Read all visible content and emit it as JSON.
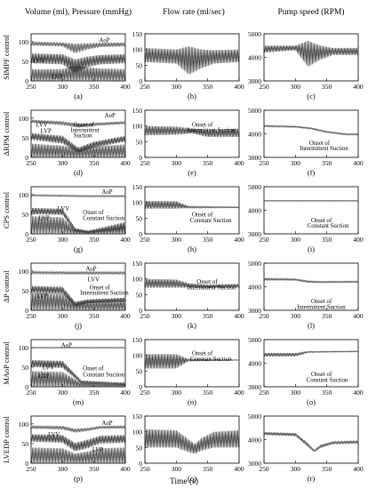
{
  "column_titles": [
    "Volume (ml), Pressure (mmHg)",
    "Flow rate (ml/sec)",
    "Pump speed (RPM)"
  ],
  "x_axis_label": "Time (s)",
  "x_ticks": [
    "250",
    "300",
    "350",
    "400"
  ],
  "rows": [
    {
      "row_label": "SIMPF control",
      "panels": [
        {
          "letter": "(a)",
          "yticks": [
            "0",
            "50",
            "100"
          ],
          "annotations": [
            "AoP",
            "LVV",
            "LVP"
          ]
        },
        {
          "letter": "(b)",
          "yticks": [
            "0",
            "50",
            "100",
            "150"
          ],
          "annotations": []
        },
        {
          "letter": "(c)",
          "yticks": [
            "3000",
            "4000",
            "5000"
          ],
          "annotations": []
        }
      ]
    },
    {
      "row_label": "ΔRPM control",
      "panels": [
        {
          "letter": "(d)",
          "yticks": [
            "0",
            "50",
            "100"
          ],
          "annotations": [
            "AoP",
            "LVV",
            "LVP",
            "Onset of",
            "Intermittent",
            "Suction"
          ]
        },
        {
          "letter": "(e)",
          "yticks": [
            "0",
            "50",
            "100",
            "150"
          ],
          "annotations": [
            "Onset of",
            "Intermittent Suction"
          ]
        },
        {
          "letter": "(f)",
          "yticks": [
            "3000",
            "4000",
            "5000"
          ],
          "annotations": [
            "Onset of",
            "Intermittent Suction"
          ]
        }
      ]
    },
    {
      "row_label": "CPS control",
      "panels": [
        {
          "letter": "(g)",
          "yticks": [
            "0",
            "50",
            "100"
          ],
          "annotations": [
            "AoP",
            "LVV",
            "LVP",
            "Onset of",
            "Constant Suction"
          ]
        },
        {
          "letter": "(h)",
          "yticks": [
            "0",
            "50",
            "100",
            "150"
          ],
          "annotations": [
            "Onset of",
            "Constant Suction"
          ]
        },
        {
          "letter": "(i)",
          "yticks": [
            "3000",
            "4000",
            "5000"
          ],
          "annotations": [
            "Onset of",
            "Constant Suction"
          ]
        }
      ]
    },
    {
      "row_label": "ΔP control",
      "panels": [
        {
          "letter": "(j)",
          "yticks": [
            "0",
            "50",
            "100"
          ],
          "annotations": [
            "AoP",
            "LVV",
            "LVP",
            "Onset of",
            "Intermittent Suction"
          ]
        },
        {
          "letter": "(k)",
          "yticks": [
            "0",
            "50",
            "100",
            "150"
          ],
          "annotations": [
            "Onset of",
            "Intermittent Suction"
          ]
        },
        {
          "letter": "(l)",
          "yticks": [
            "3000",
            "4000",
            "5000"
          ],
          "annotations": [
            "Onset of",
            "Intermittent Suction"
          ]
        }
      ]
    },
    {
      "row_label": "MAoP control",
      "panels": [
        {
          "letter": "(m)",
          "yticks": [
            "0",
            "50",
            "100"
          ],
          "annotations": [
            "AoP",
            "LVV",
            "LVP",
            "Onset of",
            "Constant Suction"
          ]
        },
        {
          "letter": "(n)",
          "yticks": [
            "0",
            "50",
            "100",
            "150"
          ],
          "annotations": [
            "Onset of",
            "Constant Suction"
          ]
        },
        {
          "letter": "(o)",
          "yticks": [
            "3000",
            "4000",
            "5000"
          ],
          "annotations": [
            "Onset of",
            "Constant Suction"
          ]
        }
      ]
    },
    {
      "row_label": "LVEDP control",
      "panels": [
        {
          "letter": "(p)",
          "yticks": [
            "0",
            "50",
            "100"
          ],
          "annotations": [
            "AoP",
            "LVV",
            "LVP"
          ]
        },
        {
          "letter": "(q)",
          "yticks": [
            "0",
            "50",
            "100",
            "150"
          ],
          "annotations": []
        },
        {
          "letter": "(r)",
          "yticks": [
            "3000",
            "4000",
            "5000"
          ],
          "annotations": []
        }
      ]
    }
  ],
  "chart_data": [
    {
      "type": "line",
      "panel": "(a)",
      "xlim": [
        250,
        400
      ],
      "ylim": [
        0,
        120
      ],
      "series": [
        {
          "name": "AoP",
          "x": [
            250,
            300,
            320,
            340,
            360,
            400
          ],
          "min": [
            90,
            88,
            70,
            80,
            86,
            88
          ],
          "max": [
            100,
            98,
            95,
            96,
            97,
            98
          ]
        },
        {
          "name": "LVV",
          "x": [
            250,
            300,
            320,
            340,
            360,
            400
          ],
          "min": [
            45,
            42,
            20,
            35,
            42,
            45
          ],
          "max": [
            70,
            68,
            55,
            62,
            66,
            68
          ]
        },
        {
          "name": "LVP",
          "x": [
            250,
            300,
            320,
            340,
            360,
            400
          ],
          "min": [
            0,
            0,
            0,
            0,
            0,
            0
          ],
          "max": [
            30,
            30,
            40,
            35,
            32,
            30
          ]
        }
      ]
    },
    {
      "type": "line",
      "panel": "(b)",
      "xlim": [
        250,
        400
      ],
      "ylim": [
        0,
        150
      ],
      "series": [
        {
          "name": "Flow",
          "x": [
            250,
            300,
            320,
            340,
            360,
            400
          ],
          "min": [
            60,
            55,
            20,
            40,
            55,
            60
          ],
          "max": [
            105,
            100,
            110,
            100,
            98,
            100
          ]
        }
      ]
    },
    {
      "type": "line",
      "panel": "(c)",
      "xlim": [
        250,
        400
      ],
      "ylim": [
        3000,
        5000
      ],
      "series": [
        {
          "name": "Speed",
          "x": [
            250,
            300,
            320,
            340,
            360,
            400
          ],
          "min": [
            4200,
            4300,
            3600,
            3900,
            4100,
            4100
          ],
          "max": [
            4500,
            4500,
            4700,
            4500,
            4400,
            4400
          ]
        }
      ]
    },
    {
      "type": "line",
      "panel": "(d)",
      "xlim": [
        250,
        400
      ],
      "ylim": [
        0,
        120
      ],
      "series": [
        {
          "name": "AoP",
          "x": [
            250,
            300,
            325,
            350,
            400
          ],
          "min": [
            88,
            82,
            76,
            80,
            85
          ],
          "max": [
            96,
            92,
            86,
            88,
            92
          ]
        },
        {
          "name": "LVV",
          "x": [
            250,
            300,
            325,
            350,
            400
          ],
          "min": [
            45,
            35,
            12,
            25,
            40
          ],
          "max": [
            62,
            55,
            25,
            40,
            55
          ]
        },
        {
          "name": "LVP",
          "x": [
            250,
            300,
            325,
            350,
            400
          ],
          "min": [
            0,
            0,
            0,
            0,
            0
          ],
          "max": [
            35,
            30,
            22,
            28,
            33
          ]
        }
      ]
    },
    {
      "type": "line",
      "panel": "(e)",
      "xlim": [
        250,
        400
      ],
      "ylim": [
        0,
        150
      ],
      "series": [
        {
          "name": "Flow",
          "x": [
            250,
            300,
            325,
            350,
            400
          ],
          "min": [
            70,
            72,
            76,
            65,
            65
          ],
          "max": [
            100,
            98,
            92,
            88,
            92
          ]
        }
      ]
    },
    {
      "type": "line",
      "panel": "(f)",
      "xlim": [
        250,
        400
      ],
      "ylim": [
        3000,
        5000
      ],
      "series": [
        {
          "name": "Speed",
          "x": [
            250,
            300,
            325,
            350,
            380,
            400
          ],
          "min": [
            4300,
            4270,
            4200,
            4050,
            3950,
            3950
          ],
          "max": [
            4360,
            4330,
            4260,
            4110,
            4010,
            4010
          ]
        }
      ]
    },
    {
      "type": "line",
      "panel": "(g)",
      "xlim": [
        250,
        400
      ],
      "ylim": [
        0,
        120
      ],
      "series": [
        {
          "name": "AoP",
          "x": [
            250,
            300,
            330,
            400
          ],
          "min": [
            96,
            95,
            94,
            94
          ],
          "max": [
            100,
            99,
            98,
            98
          ]
        },
        {
          "name": "LVV",
          "x": [
            250,
            300,
            320,
            340,
            400
          ],
          "min": [
            50,
            48,
            5,
            3,
            5
          ],
          "max": [
            66,
            64,
            15,
            8,
            30
          ]
        },
        {
          "name": "LVP",
          "x": [
            250,
            300,
            320,
            340,
            400
          ],
          "min": [
            0,
            0,
            0,
            0,
            0
          ],
          "max": [
            45,
            42,
            12,
            5,
            28
          ]
        }
      ]
    },
    {
      "type": "line",
      "panel": "(h)",
      "xlim": [
        250,
        400
      ],
      "ylim": [
        0,
        150
      ],
      "series": [
        {
          "name": "Flow",
          "x": [
            250,
            300,
            320,
            400
          ],
          "min": [
            80,
            80,
            82,
            83
          ],
          "max": [
            105,
            104,
            88,
            86
          ]
        }
      ]
    },
    {
      "type": "line",
      "panel": "(i)",
      "xlim": [
        250,
        400
      ],
      "ylim": [
        3000,
        5000
      ],
      "series": [
        {
          "name": "Speed",
          "x": [
            250,
            400
          ],
          "min": [
            4380,
            4380
          ],
          "max": [
            4420,
            4420
          ]
        }
      ]
    },
    {
      "type": "line",
      "panel": "(j)",
      "xlim": [
        250,
        400
      ],
      "ylim": [
        0,
        120
      ],
      "series": [
        {
          "name": "AoP",
          "x": [
            250,
            320,
            400
          ],
          "min": [
            93,
            92,
            92
          ],
          "max": [
            99,
            98,
            98
          ]
        },
        {
          "name": "LVV",
          "x": [
            250,
            300,
            320,
            340,
            400
          ],
          "min": [
            45,
            42,
            10,
            18,
            22
          ],
          "max": [
            62,
            60,
            22,
            28,
            32
          ]
        },
        {
          "name": "LVP",
          "x": [
            250,
            300,
            320,
            400
          ],
          "min": [
            0,
            0,
            0,
            0
          ],
          "max": [
            45,
            42,
            22,
            25
          ]
        }
      ]
    },
    {
      "type": "line",
      "panel": "(k)",
      "xlim": [
        250,
        400
      ],
      "ylim": [
        0,
        150
      ],
      "series": [
        {
          "name": "Flow",
          "x": [
            250,
            300,
            320,
            350,
            400
          ],
          "min": [
            72,
            72,
            72,
            70,
            72
          ],
          "max": [
            100,
            98,
            86,
            82,
            84
          ]
        }
      ]
    },
    {
      "type": "line",
      "panel": "(l)",
      "xlim": [
        250,
        400
      ],
      "ylim": [
        3000,
        5000
      ],
      "series": [
        {
          "name": "Speed",
          "x": [
            250,
            300,
            320,
            340,
            400
          ],
          "min": [
            4280,
            4270,
            4180,
            4170,
            4180
          ],
          "max": [
            4360,
            4340,
            4250,
            4230,
            4240
          ]
        }
      ]
    },
    {
      "type": "line",
      "panel": "(m)",
      "xlim": [
        250,
        400
      ],
      "ylim": [
        0,
        120
      ],
      "series": [
        {
          "name": "AoP",
          "x": [
            250,
            400
          ],
          "min": [
            98,
            98
          ],
          "max": [
            101,
            101
          ]
        },
        {
          "name": "LVV",
          "x": [
            250,
            300,
            330,
            400
          ],
          "min": [
            50,
            48,
            8,
            4
          ],
          "max": [
            68,
            66,
            16,
            10
          ]
        },
        {
          "name": "LVP",
          "x": [
            250,
            300,
            330,
            400
          ],
          "min": [
            0,
            0,
            0,
            0
          ],
          "max": [
            40,
            38,
            10,
            5
          ]
        }
      ]
    },
    {
      "type": "line",
      "panel": "(n)",
      "xlim": [
        250,
        400
      ],
      "ylim": [
        0,
        150
      ],
      "series": [
        {
          "name": "Flow",
          "x": [
            250,
            300,
            320,
            400
          ],
          "min": [
            58,
            58,
            82,
            84
          ],
          "max": [
            104,
            104,
            88,
            86
          ]
        }
      ]
    },
    {
      "type": "line",
      "panel": "(o)",
      "xlim": [
        250,
        400
      ],
      "ylim": [
        3000,
        5000
      ],
      "series": [
        {
          "name": "Speed",
          "x": [
            250,
            300,
            320,
            400
          ],
          "min": [
            4290,
            4290,
            4450,
            4480
          ],
          "max": [
            4430,
            4430,
            4500,
            4520
          ]
        }
      ]
    },
    {
      "type": "line",
      "panel": "(p)",
      "xlim": [
        250,
        400
      ],
      "ylim": [
        0,
        120
      ],
      "series": [
        {
          "name": "AoP",
          "x": [
            250,
            300,
            320,
            340,
            360,
            400
          ],
          "min": [
            88,
            86,
            78,
            82,
            88,
            88
          ],
          "max": [
            96,
            95,
            88,
            90,
            95,
            96
          ]
        },
        {
          "name": "LVV",
          "x": [
            250,
            300,
            320,
            340,
            360,
            400
          ],
          "min": [
            55,
            52,
            30,
            38,
            50,
            52
          ],
          "max": [
            74,
            72,
            52,
            60,
            70,
            72
          ]
        },
        {
          "name": "LVP",
          "x": [
            250,
            300,
            320,
            340,
            360,
            400
          ],
          "min": [
            0,
            0,
            0,
            0,
            0,
            0
          ],
          "max": [
            40,
            38,
            25,
            30,
            38,
            40
          ]
        }
      ]
    },
    {
      "type": "line",
      "panel": "(q)",
      "xlim": [
        250,
        400
      ],
      "ylim": [
        0,
        150
      ],
      "series": [
        {
          "name": "Flow",
          "x": [
            250,
            300,
            320,
            330,
            340,
            360,
            400
          ],
          "min": [
            50,
            50,
            35,
            30,
            40,
            50,
            50
          ],
          "max": [
            108,
            105,
            75,
            62,
            80,
            100,
            105
          ]
        }
      ]
    },
    {
      "type": "line",
      "panel": "(r)",
      "xlim": [
        250,
        400
      ],
      "ylim": [
        3000,
        5000
      ],
      "series": [
        {
          "name": "Speed",
          "x": [
            250,
            300,
            320,
            330,
            340,
            360,
            400
          ],
          "min": [
            4200,
            4150,
            3700,
            3480,
            3650,
            3820,
            3850
          ],
          "max": [
            4320,
            4280,
            3850,
            3560,
            3780,
            3920,
            3950
          ]
        }
      ]
    }
  ]
}
